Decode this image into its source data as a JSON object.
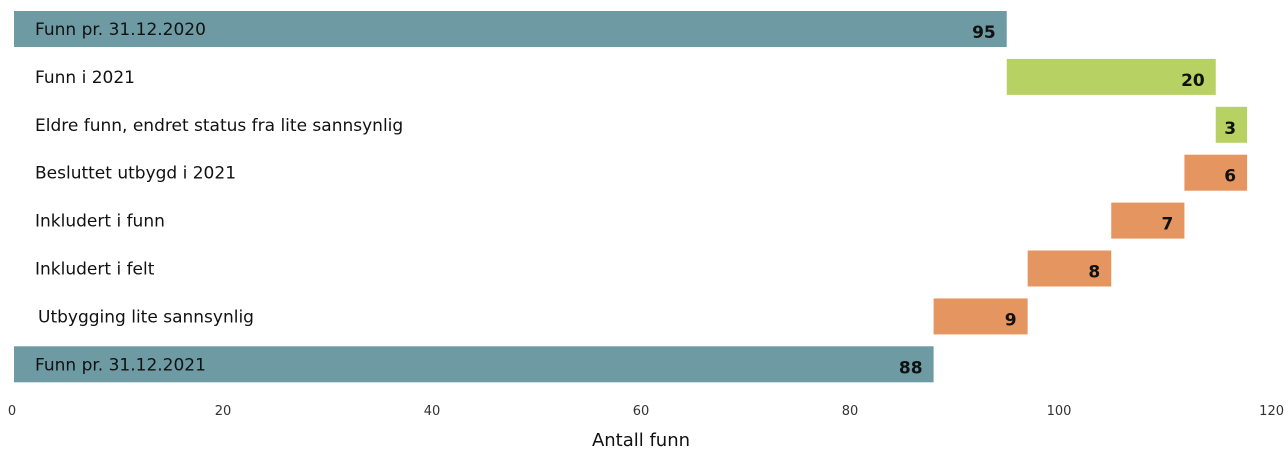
{
  "chart_data": {
    "type": "bar",
    "orientation": "horizontal",
    "subtype": "waterfall",
    "xlabel": "Antall funn",
    "xlim": [
      0,
      120
    ],
    "xticks": [
      0,
      20,
      40,
      60,
      80,
      100,
      120
    ],
    "grid": false,
    "categories": [
      "Funn pr. 31.12.2020",
      "Funn i 2021",
      "Eldre funn, endret status fra lite sannsynlig",
      "Besluttet utbygd i 2021",
      "Inkludert i funn",
      "Inkludert i felt",
      "Utbygging lite sannsynlig",
      "Funn pr. 31.12.2021"
    ],
    "bars": [
      {
        "start": 0,
        "end": 95,
        "value": 95,
        "kind": "total"
      },
      {
        "start": 95,
        "end": 115,
        "value": 20,
        "kind": "increase"
      },
      {
        "start": 115,
        "end": 118,
        "value": 3,
        "kind": "increase"
      },
      {
        "start": 112,
        "end": 118,
        "value": 6,
        "kind": "decrease"
      },
      {
        "start": 105,
        "end": 112,
        "value": 7,
        "kind": "decrease"
      },
      {
        "start": 97,
        "end": 105,
        "value": 8,
        "kind": "decrease"
      },
      {
        "start": 88,
        "end": 97,
        "value": 9,
        "kind": "decrease"
      },
      {
        "start": 0,
        "end": 88,
        "value": 88,
        "kind": "total"
      }
    ],
    "colors": {
      "total": "#6e9ba3",
      "increase": "#b8d163",
      "decrease": "#e5955f"
    }
  }
}
